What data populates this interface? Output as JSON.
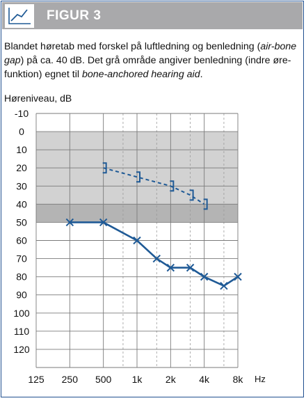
{
  "figure": {
    "label": "FIGUR 3",
    "icon": "chart-line-icon",
    "colors": {
      "header_bg": "#a9a9ab",
      "border": "#1f4f8f",
      "line": "#1f5a96",
      "shade_dark": "#b4b4b4",
      "shade_light": "#d2d2d2"
    }
  },
  "caption": {
    "p1": "Blandet høretab med forskel på luftledning og benledning (",
    "p2": "air-bone gap",
    "p3": ") på ca. 40 dB. Det grå område angiver benledning (indre øre-funktion) egnet til ",
    "p4": "bone-anchored hearing aid",
    "p5": "."
  },
  "chart_data": {
    "type": "line",
    "ylabel": "Høreniveau, dB",
    "xunit": "Hz",
    "x_ticks": [
      "125",
      "250",
      "500",
      "1k",
      "2k",
      "4k",
      "8k"
    ],
    "x_tick_values": [
      125,
      250,
      500,
      1000,
      2000,
      4000,
      8000
    ],
    "y_ticks": [
      -10,
      0,
      10,
      20,
      30,
      40,
      50,
      60,
      70,
      80,
      90,
      100,
      110,
      120
    ],
    "ylim": [
      -10,
      130
    ],
    "y_inverted": true,
    "x_log": true,
    "shaded_regions": [
      {
        "x": [
          125,
          8000
        ],
        "y": [
          0,
          40
        ],
        "shade": "light"
      },
      {
        "x": [
          125,
          8000
        ],
        "y": [
          40,
          50
        ],
        "shade": "dark"
      }
    ],
    "series": [
      {
        "marker": "x",
        "style": "solid",
        "points": [
          [
            250,
            50
          ],
          [
            500,
            50
          ],
          [
            1000,
            60
          ],
          [
            1500,
            70
          ],
          [
            2000,
            75
          ],
          [
            3000,
            75
          ],
          [
            4000,
            80
          ],
          [
            6000,
            85
          ],
          [
            8000,
            80
          ]
        ]
      },
      {
        "marker": "bracket",
        "style": "dashed",
        "points": [
          [
            500,
            20
          ],
          [
            1000,
            25
          ],
          [
            2000,
            30
          ],
          [
            3000,
            35
          ],
          [
            4000,
            40
          ]
        ]
      }
    ]
  }
}
